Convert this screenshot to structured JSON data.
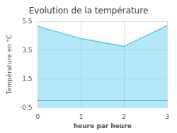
{
  "chart_data": {
    "type": "area",
    "title": "Evolution de la température",
    "xlabel": "heure par heure",
    "ylabel": "Température en °C",
    "x": [
      0,
      1,
      2,
      3
    ],
    "values": [
      5.15,
      4.3,
      3.75,
      5.2
    ],
    "color": "#55ccee",
    "xlim": [
      0,
      3
    ],
    "xticks": [
      0,
      1,
      2,
      3
    ],
    "ylim": [
      -0.5,
      5.5
    ],
    "yticks": [
      -0.5,
      1.5,
      3.5,
      5.5
    ],
    "grid": true
  }
}
